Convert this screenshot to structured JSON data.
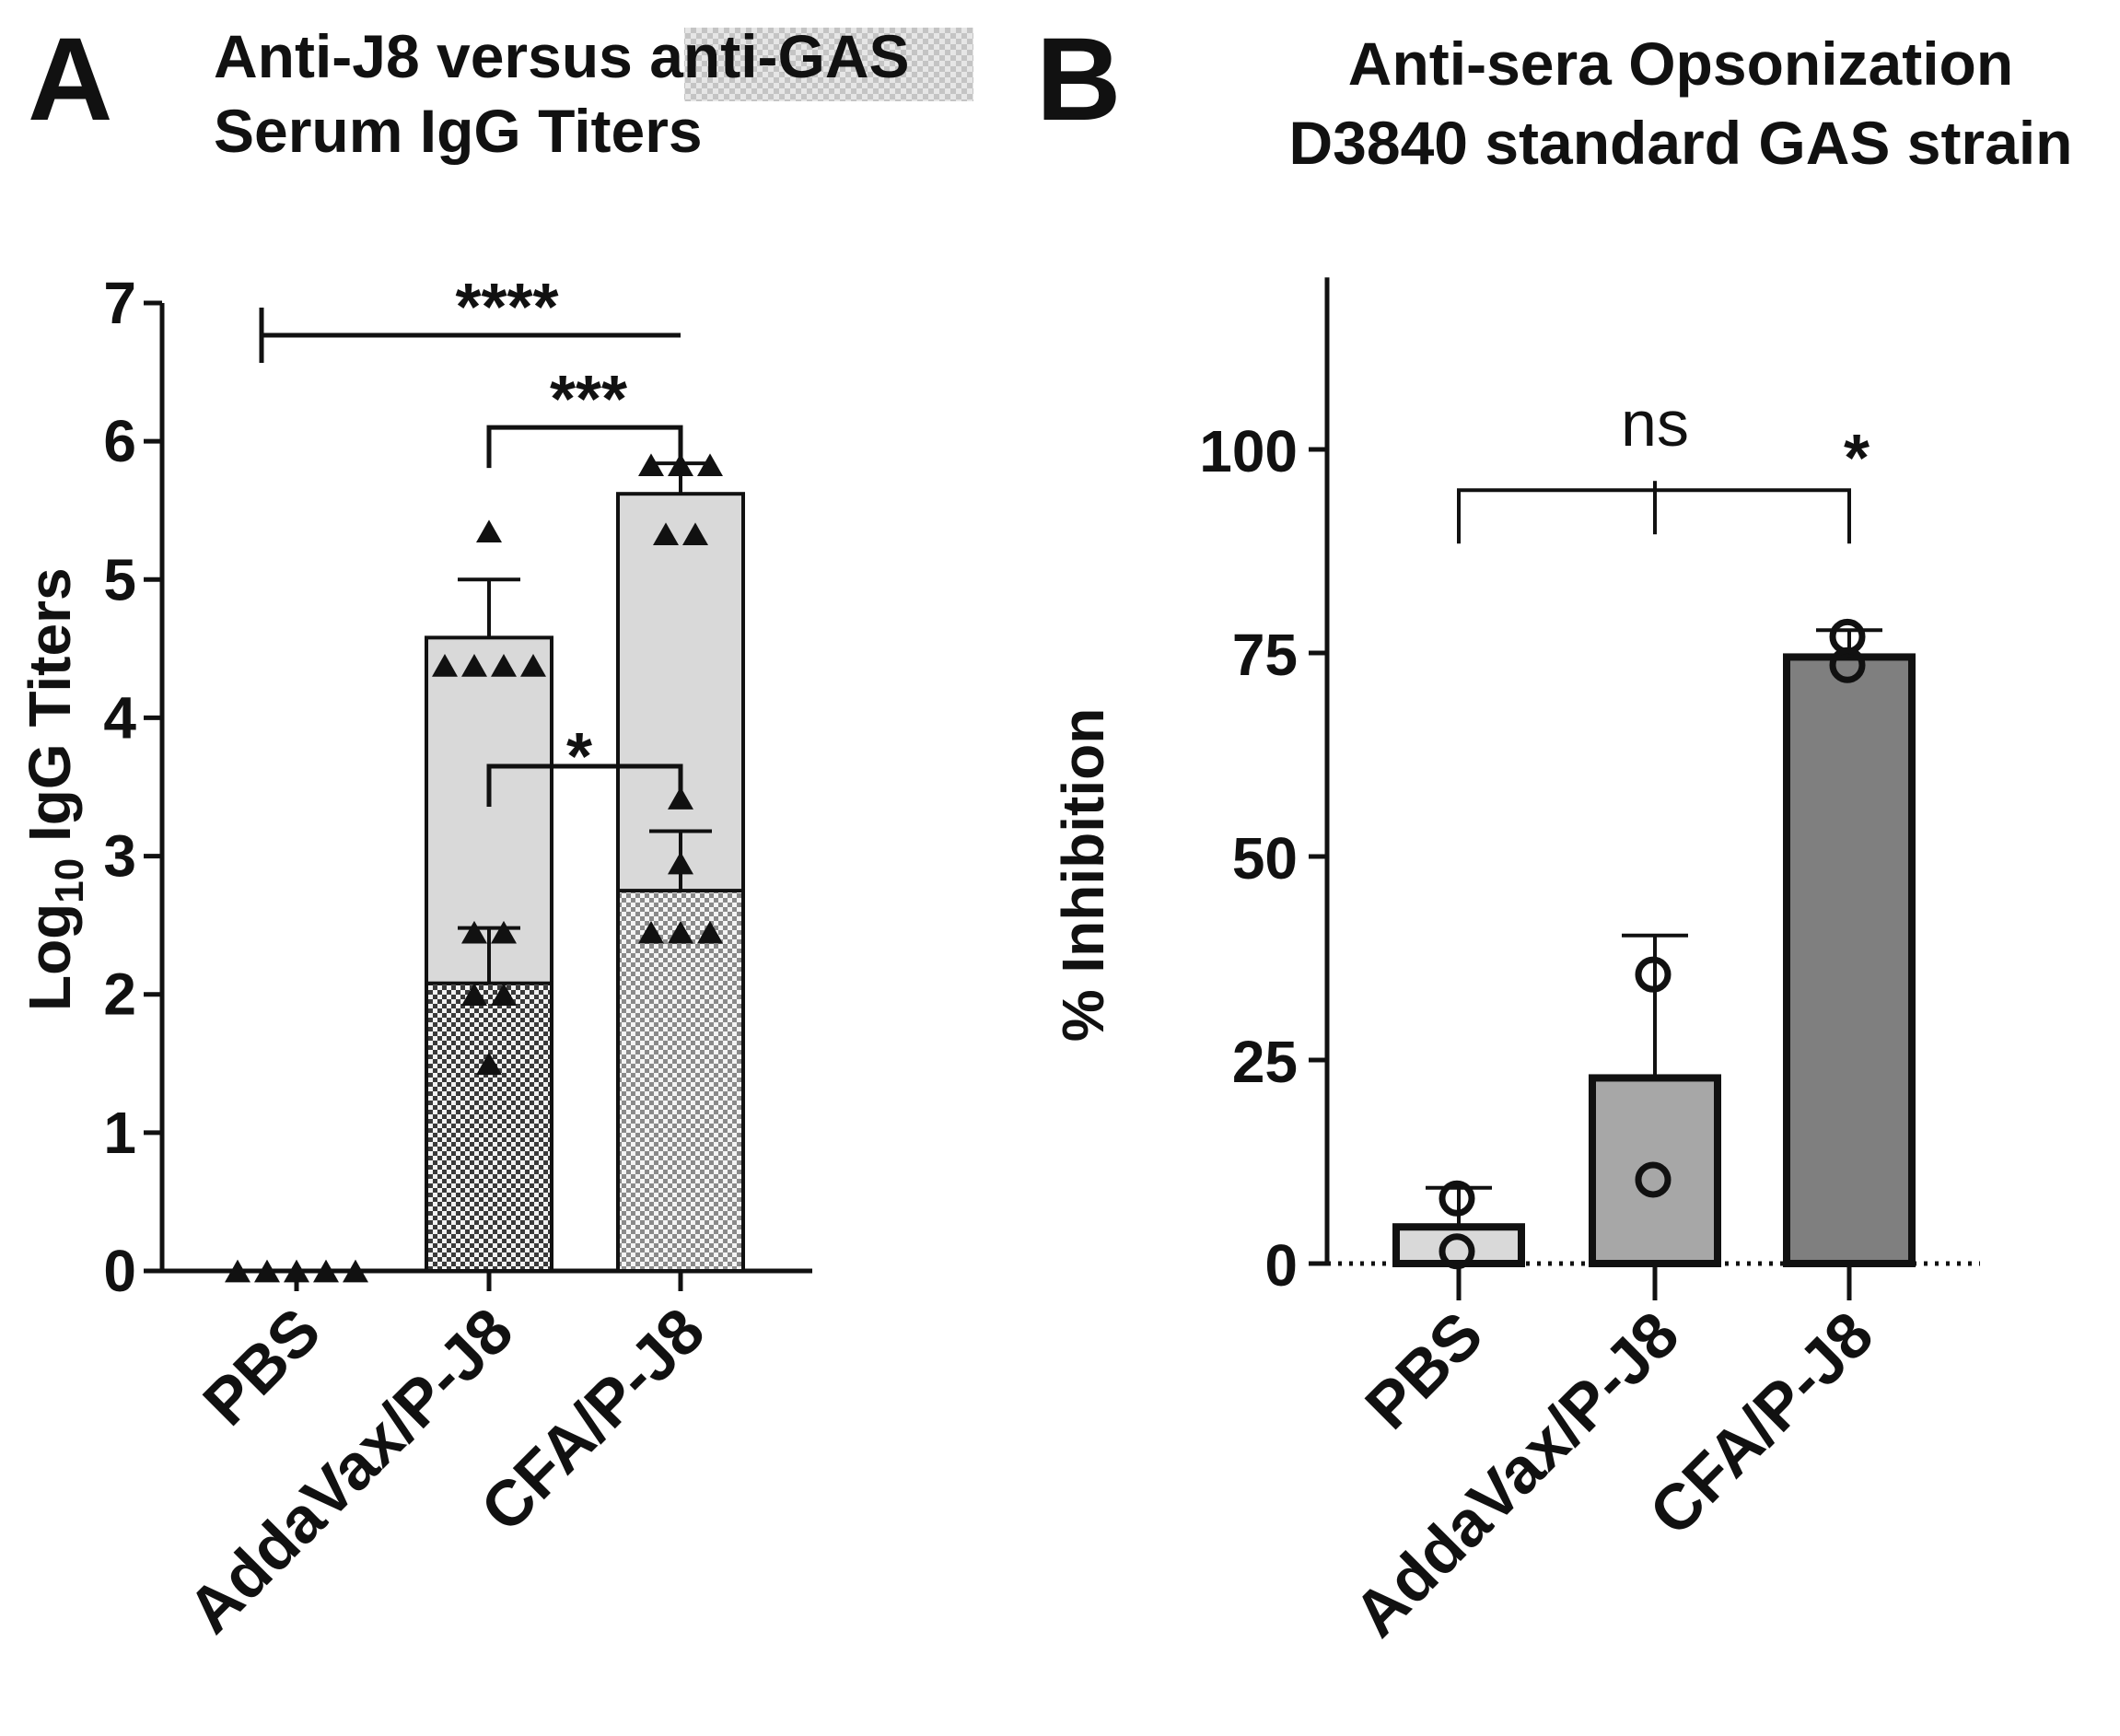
{
  "chart_data": [
    {
      "panel": "A",
      "type": "bar",
      "title": "Anti-J8 versus anti-GAS Serum IgG Titers",
      "title_line1_pre": "Anti-J8 versus ",
      "title_line1_highlight": "anti-GAS",
      "title_line2": "Serum IgG Titers",
      "ylabel_main": "Log",
      "ylabel_sub": "10",
      "ylabel_rest": " IgG Titers",
      "ylim": [
        0,
        7
      ],
      "yticks": [
        "0",
        "1",
        "2",
        "3",
        "4",
        "5",
        "6",
        "7"
      ],
      "categories": [
        "PBS",
        "AddaVax/P-J8",
        "CFA/P-J8"
      ],
      "series": [
        {
          "name": "anti-J8",
          "fill": "light-gray",
          "values": [
            0,
            4.58,
            5.62
          ],
          "error": [
            0,
            0.42,
            0.22
          ],
          "points": [
            [
              0,
              0,
              0,
              0,
              0
            ],
            [
              4.38,
              4.38,
              4.38,
              4.38,
              5.35
            ],
            [
              5.33,
              5.33,
              5.83,
              5.83,
              5.83
            ]
          ]
        },
        {
          "name": "anti-GAS",
          "fill": "checkered",
          "values": [
            0,
            2.08,
            2.75
          ],
          "error": [
            0,
            0.4,
            0.43
          ],
          "points": [
            [],
            [
              1.5,
              2.0,
              2.0,
              2.45,
              2.45
            ],
            [
              2.45,
              2.45,
              2.45,
              2.95,
              3.42
            ]
          ]
        }
      ],
      "significance": [
        {
          "label": "****",
          "from": "PBS",
          "to": "CFA/P-J8",
          "y": 6.9
        },
        {
          "label": "***",
          "from": "AddaVax/P-J8",
          "to": "CFA/P-J8",
          "y": 6.3
        },
        {
          "label": "*",
          "from": "AddaVax/P-J8",
          "to": "CFA/P-J8",
          "y": 3.85
        }
      ]
    },
    {
      "panel": "B",
      "type": "bar",
      "title": "Anti-sera Opsonization D3840 standard GAS strain",
      "title_line1": "Anti-sera Opsonization",
      "title_line2": "D3840 standard GAS strain",
      "ylabel": "% Inhibition",
      "ylim": [
        0,
        120
      ],
      "yticks": [
        "0",
        "25",
        "50",
        "75",
        "100"
      ],
      "categories": [
        "PBS",
        "AddaVax/P-J8",
        "CFA/P-J8"
      ],
      "values": [
        4.5,
        22.8,
        74.5
      ],
      "error": [
        4.8,
        17.5,
        3.3
      ],
      "points": [
        [
          8.0,
          1.5
        ],
        [
          35.5,
          10.3
        ],
        [
          77.0,
          73.5
        ]
      ],
      "significance": [
        {
          "label": "ns",
          "from": "PBS",
          "to": "AddaVax/P-J8",
          "y": 95
        },
        {
          "label": "*",
          "from": "PBS",
          "to": "CFA/P-J8",
          "y": 95
        }
      ]
    }
  ]
}
